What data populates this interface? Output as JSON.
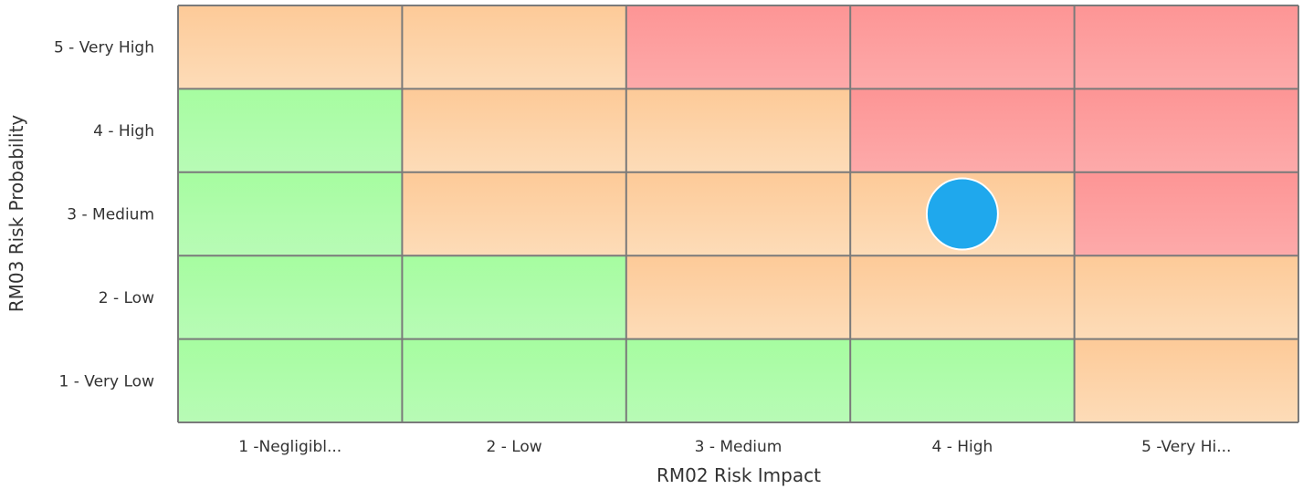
{
  "chart_data": {
    "type": "heatmap",
    "xlabel": "RM02 Risk Impact",
    "ylabel": "RM03 Risk Probability",
    "x_categories": [
      "1 -Negligibl...",
      "2 - Low",
      "3 - Medium",
      "4 - High",
      "5 -Very Hi..."
    ],
    "y_categories": [
      "1 - Very Low",
      "2 - Low",
      "3 - Medium",
      "4 - High",
      "5 - Very High"
    ],
    "cells": [
      {
        "x": "1 -Negligibl...",
        "y": "5 - Very High",
        "level": "medium"
      },
      {
        "x": "2 - Low",
        "y": "5 - Very High",
        "level": "medium"
      },
      {
        "x": "3 - Medium",
        "y": "5 - Very High",
        "level": "high"
      },
      {
        "x": "4 - High",
        "y": "5 - Very High",
        "level": "high"
      },
      {
        "x": "5 -Very Hi...",
        "y": "5 - Very High",
        "level": "high"
      },
      {
        "x": "1 -Negligibl...",
        "y": "4 - High",
        "level": "low"
      },
      {
        "x": "2 - Low",
        "y": "4 - High",
        "level": "medium"
      },
      {
        "x": "3 - Medium",
        "y": "4 - High",
        "level": "medium"
      },
      {
        "x": "4 - High",
        "y": "4 - High",
        "level": "high"
      },
      {
        "x": "5 -Very Hi...",
        "y": "4 - High",
        "level": "high"
      },
      {
        "x": "1 -Negligibl...",
        "y": "3 - Medium",
        "level": "low"
      },
      {
        "x": "2 - Low",
        "y": "3 - Medium",
        "level": "medium"
      },
      {
        "x": "3 - Medium",
        "y": "3 - Medium",
        "level": "medium"
      },
      {
        "x": "4 - High",
        "y": "3 - Medium",
        "level": "medium"
      },
      {
        "x": "5 -Very Hi...",
        "y": "3 - Medium",
        "level": "high"
      },
      {
        "x": "1 -Negligibl...",
        "y": "2 - Low",
        "level": "low"
      },
      {
        "x": "2 - Low",
        "y": "2 - Low",
        "level": "low"
      },
      {
        "x": "3 - Medium",
        "y": "2 - Low",
        "level": "medium"
      },
      {
        "x": "4 - High",
        "y": "2 - Low",
        "level": "medium"
      },
      {
        "x": "5 -Very Hi...",
        "y": "2 - Low",
        "level": "medium"
      },
      {
        "x": "1 -Negligibl...",
        "y": "1 - Very Low",
        "level": "low"
      },
      {
        "x": "2 - Low",
        "y": "1 - Very Low",
        "level": "low"
      },
      {
        "x": "3 - Medium",
        "y": "1 - Very Low",
        "level": "low"
      },
      {
        "x": "4 - High",
        "y": "1 - Very Low",
        "level": "low"
      },
      {
        "x": "5 -Very Hi...",
        "y": "1 - Very Low",
        "level": "medium"
      }
    ],
    "points": [
      {
        "x": "4 - High",
        "y": "3 - Medium"
      }
    ],
    "colors": {
      "low_top": "#a6fda0",
      "low_bottom": "#b8fbb6",
      "medium_top": "#fdca98",
      "medium_bottom": "#fddcb8",
      "high_top": "#fd9595",
      "high_bottom": "#fdaaaa",
      "grid": "#7a7a7a",
      "point": "#1fa8ed",
      "point_stroke": "#ffffff"
    }
  }
}
